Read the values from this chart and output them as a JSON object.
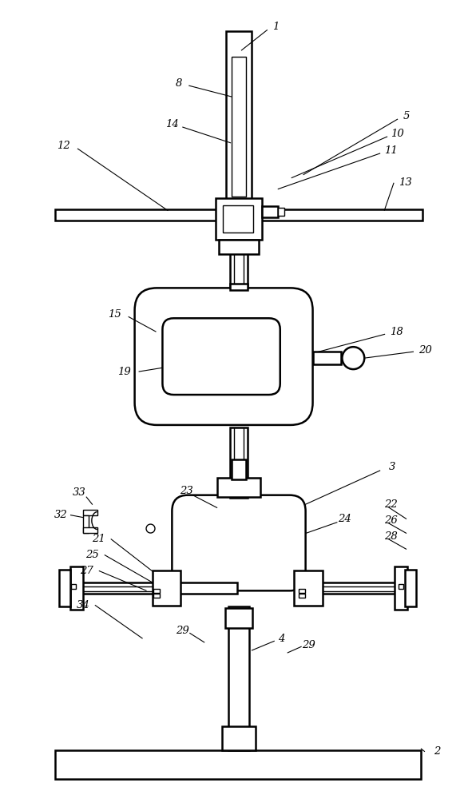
{
  "bg_color": "#ffffff",
  "line_color": "#000000",
  "lw_main": 1.8,
  "lw_thin": 1.0,
  "lw_leader": 0.8,
  "fig_width": 5.96,
  "fig_height": 10.0
}
